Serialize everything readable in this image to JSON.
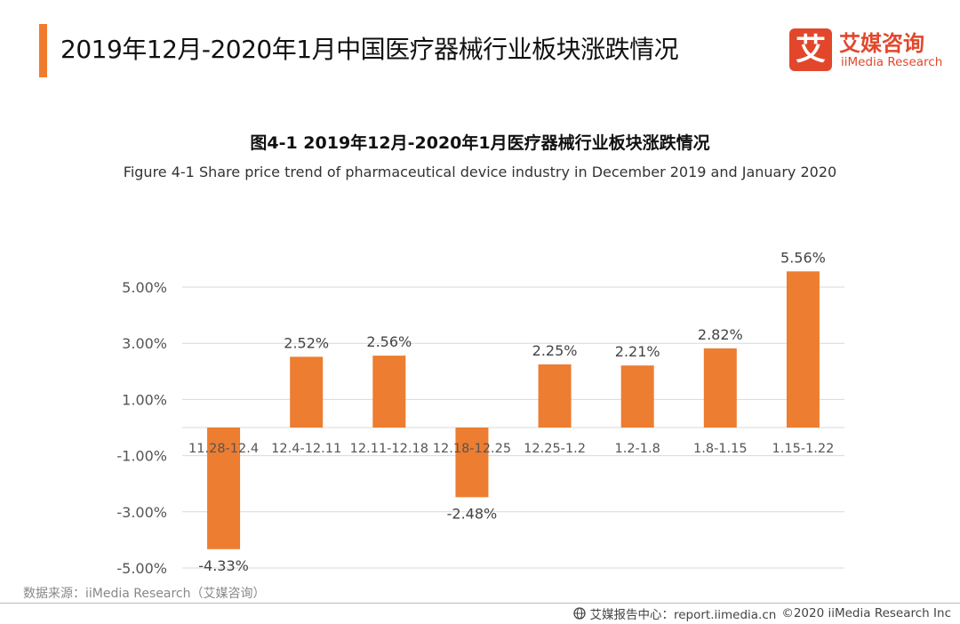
{
  "header": {
    "title": "2019年12月-2020年1月中国医疗器械行业板块涨跌情况",
    "accent_color": "#f07b2e"
  },
  "logo": {
    "mark": "艾",
    "name_cn": "艾媒咨询",
    "name_en": "iiMedia Research",
    "color": "#e2472c"
  },
  "chart_data": {
    "type": "bar",
    "title": "图4-1 2019年12月-2020年1月医疗器械行业板块涨跌情况",
    "subtitle": "Figure 4-1 Share price trend of pharmaceutical device industry  in December 2019 and January 2020",
    "categories": [
      "11.28-12.4",
      "12.4-12.11",
      "12.11-12.18",
      "12.18-12.25",
      "12.25-1.2",
      "1.2-1.8",
      "1.8-1.15",
      "1.15-1.22"
    ],
    "values": [
      -4.33,
      2.52,
      2.56,
      -2.48,
      2.25,
      2.21,
      2.82,
      5.56
    ],
    "data_labels": [
      "-4.33%",
      "2.52%",
      "2.56%",
      "-2.48%",
      "2.25%",
      "2.21%",
      "2.82%",
      "5.56%"
    ],
    "y_ticks": [
      5,
      3,
      1,
      -1,
      -3,
      -5
    ],
    "y_tick_labels": [
      "5.00%",
      "3.00%",
      "1.00%",
      "-1.00%",
      "-3.00%",
      "-5.00%"
    ],
    "ylim": [
      -5,
      5.56
    ],
    "grid": true,
    "bar_color": "#ed7d31",
    "xlabel": "",
    "ylabel": ""
  },
  "source": "数据来源：iiMedia Research（艾媒咨询）",
  "footer": {
    "report": "艾媒报告中心：report.iimedia.cn",
    "copyright": "©2020  iiMedia Research  Inc"
  }
}
